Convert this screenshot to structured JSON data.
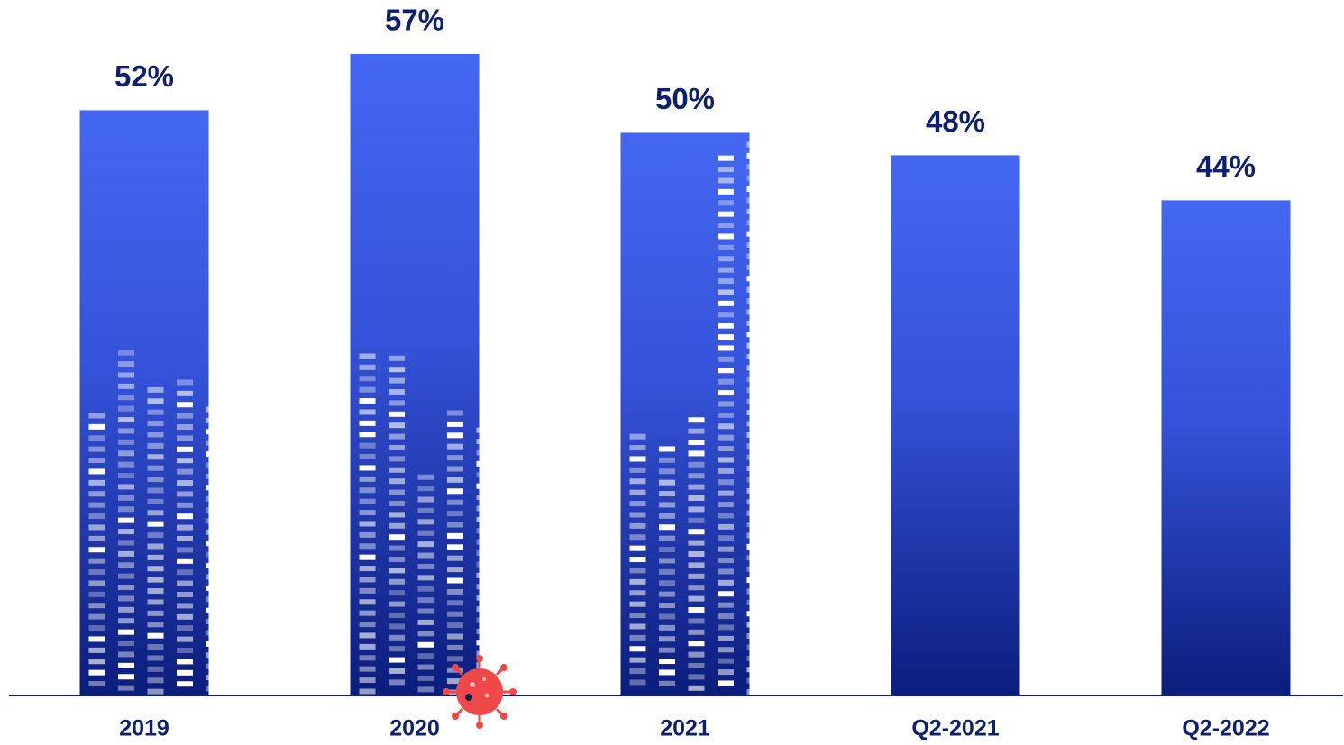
{
  "chart_data": {
    "type": "bar",
    "categories": [
      "2019",
      "2020",
      "2021",
      "Q2-2021",
      "Q2-2022"
    ],
    "values": [
      52,
      57,
      50,
      48,
      44
    ],
    "value_labels": [
      "52%",
      "57%",
      "50%",
      "48%",
      "44%"
    ],
    "color": "#4467f2"
  }
}
